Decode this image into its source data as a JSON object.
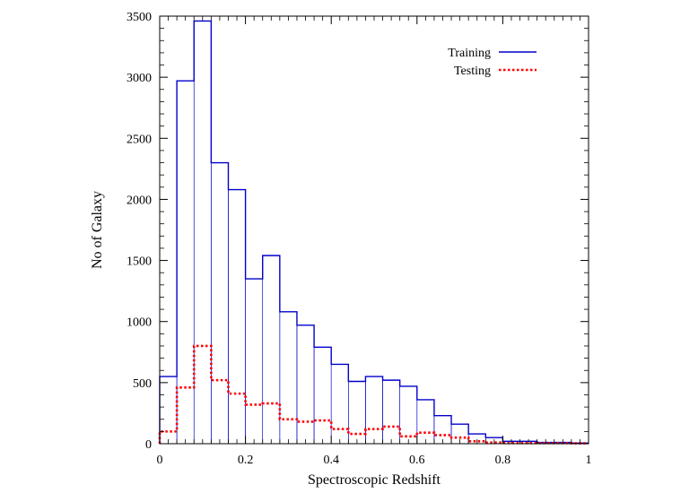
{
  "chart_data": {
    "type": "histogram",
    "xlabel": "Spectroscopic Redshift",
    "ylabel": "No of Galaxy",
    "xlim": [
      0,
      1
    ],
    "ylim": [
      0,
      3500
    ],
    "x_ticks": [
      "0",
      "0.2",
      "0.4",
      "0.6",
      "0.8",
      "1"
    ],
    "x_tick_values": [
      0,
      0.2,
      0.4,
      0.6,
      0.8,
      1
    ],
    "y_ticks": [
      "0",
      "500",
      "1000",
      "1500",
      "2000",
      "2500",
      "3000",
      "3500"
    ],
    "y_tick_values": [
      0,
      500,
      1000,
      1500,
      2000,
      2500,
      3000,
      3500
    ],
    "legend_position": "top-right",
    "grid": false,
    "bin_edges": [
      0,
      0.04,
      0.08,
      0.12,
      0.16,
      0.2,
      0.24,
      0.28,
      0.32,
      0.36,
      0.4,
      0.44,
      0.48,
      0.52,
      0.56,
      0.6,
      0.64,
      0.68,
      0.72,
      0.76,
      0.8,
      0.84,
      0.88,
      0.92,
      0.96,
      1.0
    ],
    "series": [
      {
        "name": "Training",
        "color": "#0000cc",
        "style": "solid",
        "values": [
          550,
          2970,
          3460,
          2300,
          2080,
          1350,
          1540,
          1080,
          970,
          790,
          650,
          510,
          550,
          520,
          470,
          360,
          230,
          160,
          80,
          50,
          20,
          20,
          10,
          10,
          5
        ]
      },
      {
        "name": "Testing",
        "color": "#ff0000",
        "style": "dotted",
        "values": [
          100,
          460,
          800,
          520,
          410,
          320,
          330,
          200,
          180,
          190,
          120,
          80,
          120,
          140,
          60,
          90,
          70,
          50,
          20,
          10,
          5,
          5,
          5,
          5,
          3
        ]
      }
    ]
  }
}
